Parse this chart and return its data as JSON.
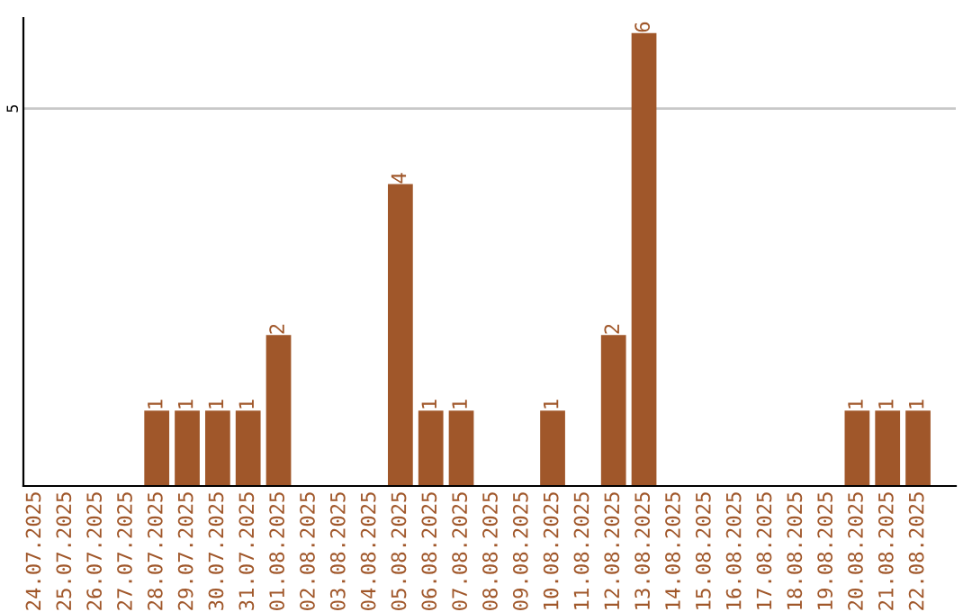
{
  "chart_data": {
    "type": "bar",
    "categories": [
      "24.07.2025",
      "25.07.2025",
      "26.07.2025",
      "27.07.2025",
      "28.07.2025",
      "29.07.2025",
      "30.07.2025",
      "31.07.2025",
      "01.08.2025",
      "02.08.2025",
      "03.08.2025",
      "04.08.2025",
      "05.08.2025",
      "06.08.2025",
      "07.08.2025",
      "08.08.2025",
      "09.08.2025",
      "10.08.2025",
      "11.08.2025",
      "12.08.2025",
      "13.08.2025",
      "14.08.2025",
      "15.08.2025",
      "16.08.2025",
      "17.08.2025",
      "18.08.2025",
      "19.08.2025",
      "20.08.2025",
      "21.08.2025",
      "22.08.2025"
    ],
    "values": [
      0,
      0,
      0,
      0,
      1,
      1,
      1,
      1,
      2,
      0,
      0,
      0,
      4,
      1,
      1,
      0,
      0,
      1,
      0,
      2,
      6,
      0,
      0,
      0,
      0,
      0,
      0,
      1,
      1,
      1
    ],
    "value_labels": [
      null,
      null,
      null,
      null,
      "1",
      "1",
      "1",
      "1",
      "2",
      null,
      null,
      null,
      "4",
      "1",
      "1",
      null,
      null,
      "1",
      null,
      "2",
      "6",
      null,
      null,
      null,
      null,
      null,
      null,
      "1",
      "1",
      "1"
    ],
    "color": "#a0572a",
    "ylim": [
      0,
      6.2
    ],
    "yticks": [
      5
    ],
    "grid": "y",
    "legend": false
  }
}
